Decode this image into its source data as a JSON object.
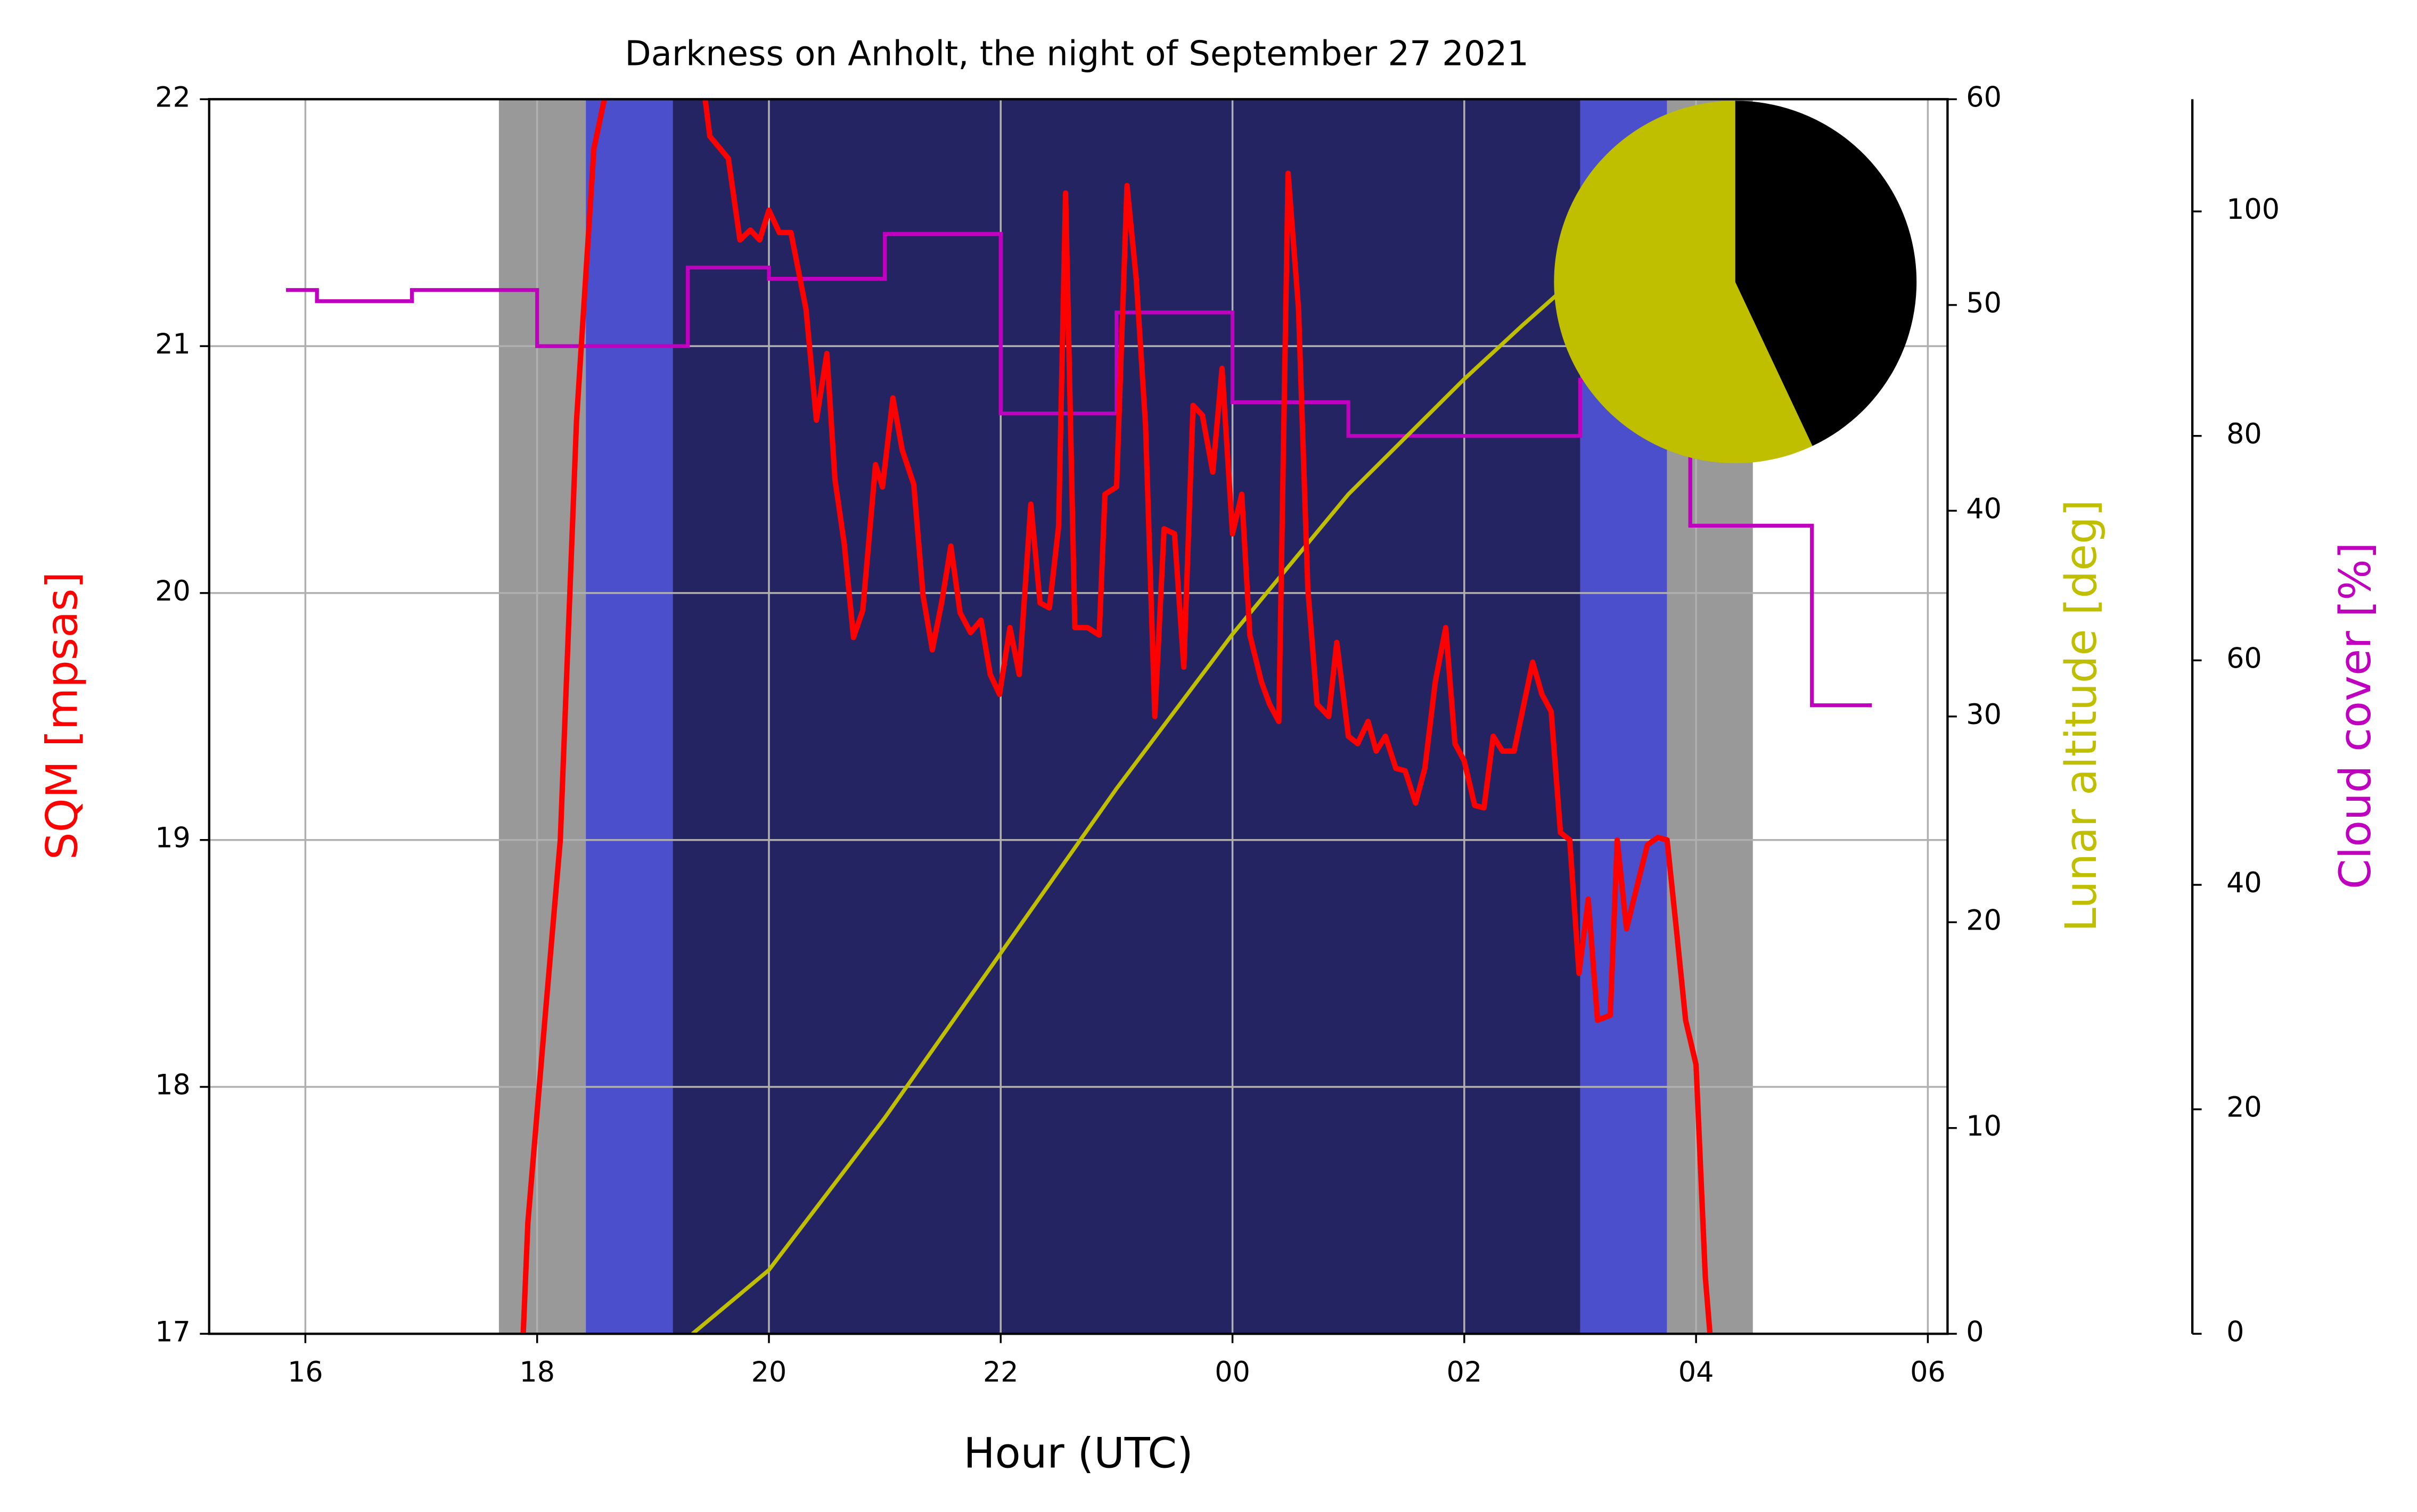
{
  "chart_data": [
    {
      "type": "line",
      "title": "Darkness on Anholt, the night of September 27 2021",
      "xlabel": "Hour (UTC)",
      "ylabel": "SQM [mpsas]",
      "ylabel_color": "#ff0000",
      "y2label": "Lunar altitude [deg]",
      "y2label_color": "#bfbf00",
      "y3label": "Cloud cover [%]",
      "y3label_color": "#bf00bf",
      "xlim": [
        15.17,
        30.17
      ],
      "xticks": [
        16,
        18,
        20,
        22,
        {
          "value": 24,
          "label": "00"
        },
        {
          "value": 26,
          "label": "02"
        },
        {
          "value": 28,
          "label": "04"
        },
        {
          "value": 30,
          "label": "06"
        }
      ],
      "ylim": [
        17,
        22
      ],
      "yticks": [
        17,
        18,
        19,
        20,
        21,
        22
      ],
      "y2lim": [
        0,
        60
      ],
      "y2ticks": [
        0,
        10,
        20,
        30,
        40,
        50,
        60
      ],
      "y3lim": [
        0,
        110
      ],
      "y3ticks": [
        0,
        20,
        40,
        60,
        80,
        100
      ],
      "grid": true,
      "bands": [
        {
          "start": 17.67,
          "end": 18.42,
          "color": "#999999"
        },
        {
          "start": 18.42,
          "end": 19.17,
          "color": "#4b4fcc"
        },
        {
          "start": 19.17,
          "end": 27.0,
          "color": "#252463"
        },
        {
          "start": 27.0,
          "end": 27.75,
          "color": "#4b4fcc"
        },
        {
          "start": 27.75,
          "end": 28.49,
          "color": "#999999"
        }
      ],
      "series": [
        {
          "axis": "y3",
          "color": "#bf00bf",
          "drawstyle": "steps-post",
          "width": 2.5,
          "x": [
            15.85,
            16.1,
            16.92,
            18.0,
            19.3,
            20.0,
            21.0,
            22.0,
            23.0,
            24.0,
            25.0,
            27.0,
            27.95,
            29.0,
            29.5
          ],
          "values": [
            93,
            92,
            93,
            88,
            95,
            94,
            98,
            82,
            91,
            83,
            80,
            85,
            72,
            56,
            56
          ]
        },
        {
          "axis": "y2",
          "color": "#bfbf00",
          "width": 2.5,
          "x": [
            19.34,
            20.0,
            21.0,
            22.0,
            23.0,
            24.0,
            25.0,
            26.0,
            26.5,
            27.0,
            27.5
          ],
          "values": [
            0,
            3.1,
            10.5,
            18.5,
            26.5,
            34,
            40.8,
            46.4,
            49,
            51.5,
            53.3
          ]
        },
        {
          "axis": "y",
          "color": "#ff0000",
          "width": 3.5,
          "x": [
            17.88,
            17.92,
            18.07,
            18.2,
            18.34,
            18.49,
            18.58,
            18.9,
            19.45,
            19.49,
            19.65,
            19.75,
            19.84,
            19.92,
            20.0,
            20.09,
            20.19,
            20.32,
            20.41,
            20.5,
            20.57,
            20.65,
            20.73,
            20.81,
            20.92,
            20.98,
            21.07,
            21.15,
            21.25,
            21.33,
            21.41,
            21.49,
            21.57,
            21.65,
            21.74,
            21.83,
            21.91,
            21.99,
            22.08,
            22.16,
            22.26,
            22.34,
            22.42,
            22.5,
            22.56,
            22.64,
            22.75,
            22.85,
            22.9,
            23.0,
            23.09,
            23.17,
            23.25,
            23.33,
            23.41,
            23.5,
            23.58,
            23.66,
            23.74,
            23.83,
            23.91,
            24.0,
            24.08,
            24.15,
            24.25,
            24.32,
            24.4,
            24.48,
            24.57,
            24.65,
            24.73,
            24.83,
            24.9,
            25.0,
            25.08,
            25.17,
            25.24,
            25.32,
            25.41,
            25.49,
            25.58,
            25.66,
            25.75,
            25.84,
            25.92,
            26.0,
            26.09,
            26.17,
            26.25,
            26.33,
            26.43,
            26.51,
            26.59,
            26.67,
            26.75,
            26.83,
            26.91,
            26.99,
            27.07,
            27.15,
            27.26,
            27.32,
            27.4,
            27.5,
            27.58,
            27.67,
            27.75,
            27.83,
            27.91,
            28.0,
            28.08,
            28.12
          ],
          "values": [
            17.0,
            17.45,
            18.29,
            19.0,
            20.7,
            21.8,
            22.0,
            null,
            22.0,
            21.85,
            21.76,
            21.43,
            21.47,
            21.43,
            21.55,
            21.46,
            21.46,
            21.15,
            20.7,
            20.97,
            20.46,
            20.2,
            19.82,
            19.93,
            20.52,
            20.43,
            20.79,
            20.58,
            20.44,
            19.99,
            19.77,
            19.96,
            20.19,
            19.92,
            19.84,
            19.89,
            19.67,
            19.59,
            19.86,
            19.67,
            20.36,
            19.96,
            19.94,
            20.27,
            21.62,
            19.86,
            19.86,
            19.83,
            20.4,
            20.43,
            21.65,
            21.27,
            20.68,
            19.5,
            20.26,
            20.24,
            19.7,
            20.76,
            20.72,
            20.49,
            20.91,
            20.24,
            20.4,
            19.83,
            19.64,
            19.55,
            19.48,
            21.7,
            21.15,
            20.02,
            19.55,
            19.5,
            19.8,
            19.42,
            19.39,
            19.48,
            19.36,
            19.42,
            19.29,
            19.28,
            19.15,
            19.29,
            19.64,
            19.86,
            19.39,
            19.32,
            19.14,
            19.13,
            19.42,
            19.36,
            19.36,
            19.54,
            19.72,
            19.59,
            19.52,
            19.03,
            19.0,
            18.46,
            18.76,
            18.27,
            18.29,
            19.0,
            18.64,
            18.83,
            18.98,
            19.01,
            19.0,
            18.64,
            18.27,
            18.09,
            17.23,
            17.0
          ]
        }
      ]
    },
    {
      "type": "pie",
      "values": [
        57,
        43
      ],
      "colors": [
        "#bfbf00",
        "#000000"
      ],
      "startangle": 90
    }
  ]
}
